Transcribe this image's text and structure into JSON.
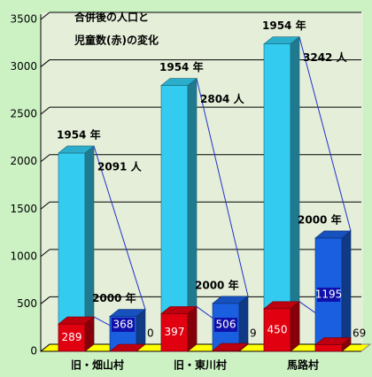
{
  "chart_data": {
    "type": "bar3d",
    "title_lines": [
      "合併後の人口と",
      "児童数(赤)の変化"
    ],
    "categories": [
      "旧・畑山村",
      "旧・東川村",
      "馬路村"
    ],
    "period_labels": [
      "1954 年",
      "2000 年"
    ],
    "series": [
      {
        "values": [
          2091,
          2804,
          3242
        ],
        "value_labels": [
          "2091 人",
          "2804 人",
          "3242 人"
        ],
        "color": "#33ccf0"
      },
      {
        "values": [
          289,
          397,
          450
        ],
        "color": "#e00010"
      },
      {
        "values": [
          368,
          506,
          1195
        ],
        "color": "#1a5fe0"
      },
      {
        "values": [
          0,
          9,
          69
        ],
        "color": "#e00010"
      }
    ],
    "ylim": [
      0,
      3500
    ],
    "yticks": [
      0,
      500,
      1000,
      1500,
      2000,
      2500,
      3000,
      3500
    ],
    "grid": true,
    "floor_color": "#ffff00"
  }
}
